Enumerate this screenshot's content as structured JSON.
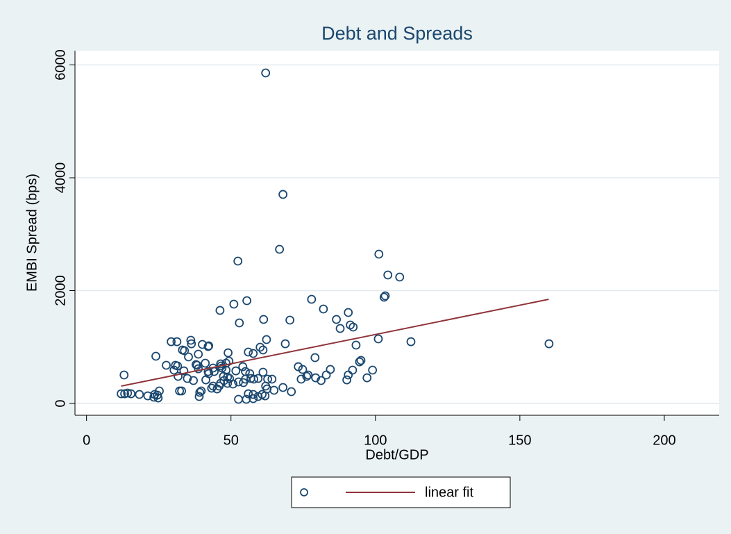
{
  "chart_data": {
    "type": "scatter",
    "title": "Debt and Spreads",
    "x_label": "Debt/GDP",
    "y_label": "EMBI Spread (bps)",
    "xlim": [
      -4,
      219
    ],
    "ylim": [
      -209,
      6252
    ],
    "xticks": [
      0,
      50,
      100,
      150,
      200
    ],
    "yticks": [
      0,
      2000,
      4000,
      6000
    ],
    "grid": true,
    "series": [
      {
        "color": "#1a476f",
        "x": [
          62,
          68,
          66.8,
          52.4,
          101.2,
          104.3,
          108.4,
          103,
          103.4,
          90.6,
          77.9,
          82,
          86.5,
          87.8,
          91.3,
          92.3,
          93.3,
          101,
          112.3,
          160.1,
          46.2,
          51,
          55.5,
          52.9,
          61.3,
          70.4,
          68.8,
          62.3,
          60.1,
          61.1,
          56,
          57.7,
          49,
          31.3,
          29.3,
          36.1,
          36.3,
          40.1,
          42.1,
          42.3,
          33.2,
          33.9,
          24,
          38.7,
          35.3,
          27.6,
          30.8,
          31.5,
          37.9,
          38.3,
          41.1,
          46.4,
          46.6,
          48.3,
          49.3,
          30.3,
          33.7,
          38.7,
          42.1,
          42.3,
          44.2,
          43.8,
          46.9,
          48.3,
          51.7,
          54.1,
          55,
          56.5,
          61.1,
          73.3,
          74.8,
          84.4,
          92.1,
          99,
          83,
          79.3,
          74.3,
          76.2,
          76.7,
          81.2,
          90.1,
          90.6,
          97.1,
          94.5,
          95,
          79.1,
          31.7,
          34.9,
          37,
          41.3,
          43.8,
          43.3,
          45.2,
          46.4,
          47.6,
          48.8,
          47.4,
          48.8,
          49.5,
          50.7,
          52.6,
          54.3,
          55,
          56.9,
          57.9,
          59.4,
          62.7,
          64.2,
          62,
          62.5,
          64.9,
          68,
          70.9,
          56,
          57.7,
          59.4,
          60.8,
          61.8,
          52.6,
          55.3,
          57.7,
          13,
          12,
          13.2,
          14.2,
          15.4,
          18.3,
          21.2,
          23.6,
          24.5,
          23.3,
          24.8,
          25.2,
          32.2,
          32.9,
          39.2,
          39.7,
          39,
          45.9
        ],
        "values": [
          5858,
          3705,
          2732,
          2523,
          2646,
          2277,
          2240,
          1883,
          1908,
          1612,
          1846,
          1674,
          1489,
          1329,
          1391,
          1354,
          1034,
          1145,
          1095,
          1058,
          1649,
          1760,
          1822,
          1428,
          1489,
          1477,
          1058,
          1132,
          997,
          948,
          911,
          886,
          898,
          1095,
          1095,
          1120,
          1058,
          1046,
          1009,
          1022,
          948,
          935,
          837,
          874,
          825,
          677,
          677,
          665,
          689,
          677,
          714,
          702,
          665,
          714,
          751,
          591,
          578,
          615,
          566,
          529,
          566,
          628,
          628,
          591,
          578,
          652,
          566,
          529,
          554,
          652,
          603,
          603,
          591,
          591,
          505,
          455,
          431,
          480,
          505,
          406,
          418,
          505,
          455,
          738,
          763,
          812,
          480,
          443,
          406,
          418,
          308,
          271,
          258,
          357,
          406,
          357,
          480,
          468,
          443,
          345,
          382,
          369,
          431,
          443,
          431,
          443,
          431,
          431,
          308,
          258,
          234,
          283,
          209,
          172,
          160,
          123,
          160,
          135,
          74,
          74,
          86,
          505,
          172,
          172,
          185,
          172,
          160,
          135,
          160,
          148,
          111,
          98,
          222,
          222,
          222,
          197,
          222,
          123,
          308
        ]
      },
      {
        "name": "linear fit",
        "color": "#90353b",
        "x": [
          12,
          160
        ],
        "values": [
          308,
          1846
        ]
      }
    ]
  }
}
